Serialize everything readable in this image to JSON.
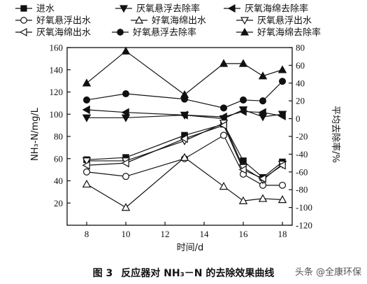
{
  "chart_data": {
    "type": "line",
    "xlabel": "时间/d",
    "ylabel_left": "NH₃-N/mg/L",
    "ylabel_right": "平均去除率/%",
    "xlim": [
      7,
      18.5
    ],
    "xticks": [
      8,
      10,
      12,
      14,
      16,
      18
    ],
    "ylim_left": [
      0,
      160
    ],
    "yticks_left": [
      20,
      40,
      60,
      80,
      100,
      120,
      140,
      160
    ],
    "ylim_right": [
      -120,
      80
    ],
    "yticks_right": [
      -120,
      -100,
      -80,
      -60,
      -40,
      -20,
      0,
      20,
      40,
      60,
      80
    ],
    "x": [
      8,
      10,
      13,
      15,
      16,
      17,
      18
    ],
    "series": [
      {
        "name": "进水",
        "axis": "left",
        "marker": "square-filled",
        "values": [
          59,
          61,
          81,
          91,
          58,
          43,
          57
        ]
      },
      {
        "name": "厌氧悬浮去除率",
        "axis": "right",
        "marker": "tri-down-filled",
        "values": [
          1,
          1,
          4,
          0,
          10,
          2,
          5
        ]
      },
      {
        "name": "厌氧海绵去除率",
        "axis": "right",
        "marker": "tri-left-filled",
        "values": [
          10,
          7,
          4,
          2,
          8,
          7,
          3
        ]
      },
      {
        "name": "好氧悬浮出水",
        "axis": "left",
        "marker": "circle-open",
        "values": [
          48,
          44,
          60,
          81,
          46,
          36,
          36
        ]
      },
      {
        "name": "好氧海绵出水",
        "axis": "left",
        "marker": "tri-up-open",
        "values": [
          37,
          16,
          61,
          35,
          22,
          24,
          23
        ]
      },
      {
        "name": "厌氧悬浮出水",
        "axis": "left",
        "marker": "tri-down-open",
        "values": [
          58,
          58,
          76,
          92,
          52,
          41,
          55
        ]
      },
      {
        "name": "厌氧海绵出水",
        "axis": "left",
        "marker": "tri-left-open",
        "values": [
          54,
          56,
          78,
          90,
          50,
          42,
          54
        ]
      },
      {
        "name": "好氧悬浮去除率",
        "axis": "right",
        "marker": "circle-filled",
        "values": [
          21,
          28,
          22,
          12,
          21,
          20,
          42
        ]
      },
      {
        "name": "好氧海绵去除率",
        "axis": "right",
        "marker": "tri-up-filled",
        "values": [
          40,
          76,
          27,
          62,
          62,
          48,
          55
        ]
      }
    ],
    "legend": "top"
  },
  "caption": {
    "figure_no": "图 3",
    "text": "反应器对 NH₃－N 的去除效果曲线"
  },
  "watermark": "头条 @全康环保"
}
